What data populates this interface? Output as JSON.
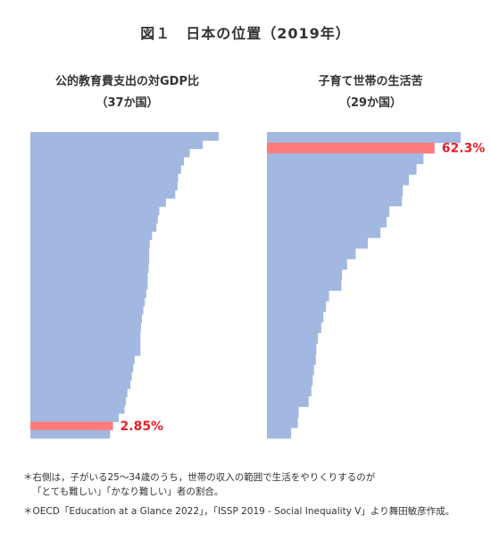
{
  "title": "図１　日本の位置（2019年）",
  "chart_data": [
    {
      "type": "bar",
      "orientation": "horizontal",
      "title": "公的教育費支出の対GDP比",
      "subtitle": "（37か国）",
      "highlight_label": "2.85%",
      "highlight_index": 35,
      "bar_color": "#a2b8e0",
      "highlight_color": "#ff7b7b",
      "label_color": "#e8202a",
      "values": [
        6.5,
        5.95,
        5.5,
        5.3,
        5.2,
        5.1,
        5.08,
        5.0,
        4.68,
        4.45,
        4.4,
        4.35,
        4.2,
        4.12,
        4.1,
        4.1,
        4.08,
        4.05,
        4.05,
        4.0,
        3.95,
        3.9,
        3.85,
        3.82,
        3.8,
        3.8,
        3.8,
        3.6,
        3.55,
        3.5,
        3.45,
        3.35,
        3.3,
        3.25,
        3.05,
        2.85,
        2.75
      ]
    },
    {
      "type": "bar",
      "orientation": "horizontal",
      "title": "子育て世帯の生活苦",
      "subtitle": "（29か国）",
      "highlight_label": "62.3%",
      "highlight_index": 1,
      "bar_color": "#a2b8e0",
      "highlight_color": "#ff7b7b",
      "label_color": "#e8202a",
      "values": [
        72.0,
        62.3,
        58.2,
        55.6,
        52.8,
        50.5,
        50.2,
        45.5,
        44.5,
        42.2,
        37.5,
        33.0,
        29.8,
        27.9,
        27.7,
        23.1,
        22.0,
        21.0,
        20.2,
        19.0,
        18.4,
        18.2,
        17.5,
        17.0,
        16.5,
        15.5,
        11.8,
        11.5,
        9.0
      ]
    }
  ],
  "notes": {
    "line1": "＊右側は，子がいる25～34歳のうち，世帯の収入の範囲で生活をやりくりするのが",
    "line2": "「とても難しい」「かなり難しい」者の割合。",
    "line3": "＊OECD「Education at a Glance 2022」，「ISSP 2019 - Social Inequality V」より舞田敏彦作成。"
  }
}
